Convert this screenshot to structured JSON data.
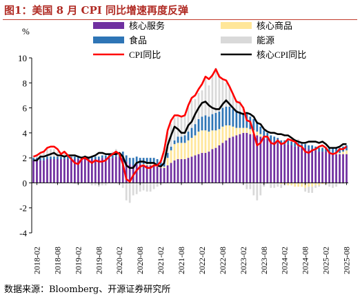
{
  "figure": {
    "title": "图1：美国 8 月 CPI 同比增速再度反弹",
    "source": "数据来源：Bloomberg、开源证券研究所"
  },
  "chart_data": {
    "type": "bar+line",
    "ylabel": "%",
    "ylim": [
      -4,
      10
    ],
    "yticks": [
      -4,
      -2,
      0,
      2,
      4,
      6,
      8,
      10
    ],
    "x_tick_labels": [
      "2018-02",
      "2018-08",
      "2019-02",
      "2019-08",
      "2020-02",
      "2020-08",
      "2021-02",
      "2021-08",
      "2022-02",
      "2022-08",
      "2023-02",
      "2023-08",
      "2024-02",
      "2024-08",
      "2025-02",
      "2025-08"
    ],
    "grid": false,
    "legend_position": "top",
    "months": [
      "2018-01",
      "2018-02",
      "2018-03",
      "2018-04",
      "2018-05",
      "2018-06",
      "2018-07",
      "2018-08",
      "2018-09",
      "2018-10",
      "2018-11",
      "2018-12",
      "2019-01",
      "2019-02",
      "2019-03",
      "2019-04",
      "2019-05",
      "2019-06",
      "2019-07",
      "2019-08",
      "2019-09",
      "2019-10",
      "2019-11",
      "2019-12",
      "2020-01",
      "2020-02",
      "2020-03",
      "2020-04",
      "2020-05",
      "2020-06",
      "2020-07",
      "2020-08",
      "2020-09",
      "2020-10",
      "2020-11",
      "2020-12",
      "2021-01",
      "2021-02",
      "2021-03",
      "2021-04",
      "2021-05",
      "2021-06",
      "2021-07",
      "2021-08",
      "2021-09",
      "2021-10",
      "2021-11",
      "2021-12",
      "2022-01",
      "2022-02",
      "2022-03",
      "2022-04",
      "2022-05",
      "2022-06",
      "2022-07",
      "2022-08",
      "2022-09",
      "2022-10",
      "2022-11",
      "2022-12",
      "2023-01",
      "2023-02",
      "2023-03",
      "2023-04",
      "2023-05",
      "2023-06",
      "2023-07",
      "2023-08",
      "2023-09",
      "2023-10",
      "2023-11",
      "2023-12",
      "2024-01",
      "2024-02",
      "2024-03",
      "2024-04",
      "2024-05",
      "2024-06",
      "2024-07",
      "2024-08",
      "2024-09",
      "2024-10",
      "2024-11",
      "2024-12",
      "2025-01",
      "2025-02",
      "2025-03",
      "2025-04",
      "2025-05",
      "2025-06",
      "2025-07",
      "2025-08"
    ],
    "bar_series": [
      {
        "name": "核心服务",
        "color": "#7030a0",
        "values": [
          1.8,
          1.8,
          1.8,
          1.8,
          1.9,
          1.9,
          1.9,
          1.9,
          1.9,
          1.9,
          1.9,
          1.9,
          1.9,
          1.9,
          1.9,
          1.9,
          1.9,
          1.9,
          1.9,
          1.9,
          2.0,
          2.0,
          2.0,
          2.0,
          2.1,
          2.1,
          2.0,
          1.7,
          1.5,
          1.4,
          1.5,
          1.5,
          1.4,
          1.4,
          1.4,
          1.4,
          1.3,
          1.2,
          1.2,
          1.4,
          1.6,
          1.8,
          1.9,
          1.9,
          1.9,
          2.0,
          2.1,
          2.2,
          2.3,
          2.4,
          2.4,
          2.5,
          2.7,
          2.8,
          3.0,
          3.2,
          3.4,
          3.6,
          3.7,
          3.8,
          3.9,
          4.0,
          4.0,
          3.9,
          3.9,
          3.8,
          3.7,
          3.6,
          3.5,
          3.4,
          3.3,
          3.2,
          3.1,
          3.1,
          3.1,
          3.0,
          2.9,
          2.9,
          2.8,
          2.8,
          2.7,
          2.7,
          2.6,
          2.5,
          2.5,
          2.5,
          2.4,
          2.4,
          2.3,
          2.3,
          2.3,
          2.3
        ]
      },
      {
        "name": "核心商品",
        "color": "#ffe699",
        "values": [
          0.0,
          0.0,
          0.0,
          0.0,
          0.0,
          0.0,
          0.0,
          0.0,
          0.0,
          0.0,
          0.0,
          0.0,
          0.0,
          0.0,
          0.0,
          0.0,
          0.0,
          0.0,
          0.0,
          0.0,
          0.0,
          0.0,
          0.0,
          0.0,
          0.0,
          0.0,
          0.0,
          0.0,
          0.0,
          0.0,
          0.0,
          0.0,
          0.1,
          0.1,
          0.1,
          0.1,
          0.1,
          0.1,
          0.1,
          0.6,
          1.0,
          1.3,
          1.3,
          1.3,
          1.3,
          1.4,
          1.5,
          1.6,
          1.8,
          1.8,
          1.8,
          1.6,
          1.5,
          1.4,
          1.3,
          1.3,
          1.2,
          1.0,
          0.8,
          0.6,
          0.5,
          0.4,
          0.4,
          0.4,
          0.3,
          0.3,
          0.2,
          0.1,
          0.0,
          0.0,
          0.0,
          0.0,
          -0.1,
          -0.1,
          -0.2,
          -0.2,
          -0.3,
          -0.3,
          -0.3,
          -0.4,
          -0.3,
          -0.3,
          -0.2,
          -0.2,
          -0.1,
          -0.1,
          0.0,
          0.0,
          0.1,
          0.1,
          0.2,
          0.3
        ]
      },
      {
        "name": "食品",
        "color": "#2e75b6",
        "values": [
          0.2,
          0.2,
          0.2,
          0.2,
          0.2,
          0.2,
          0.2,
          0.2,
          0.2,
          0.2,
          0.2,
          0.2,
          0.2,
          0.2,
          0.2,
          0.2,
          0.2,
          0.2,
          0.2,
          0.2,
          0.2,
          0.2,
          0.3,
          0.3,
          0.3,
          0.3,
          0.5,
          0.5,
          0.5,
          0.6,
          0.6,
          0.5,
          0.5,
          0.5,
          0.5,
          0.5,
          0.5,
          0.5,
          0.5,
          0.4,
          0.3,
          0.3,
          0.5,
          0.5,
          0.6,
          0.7,
          0.8,
          0.9,
          1.0,
          1.1,
          1.2,
          1.2,
          1.3,
          1.4,
          1.4,
          1.5,
          1.5,
          1.5,
          1.4,
          1.4,
          1.3,
          1.2,
          1.1,
          1.0,
          0.9,
          0.8,
          0.6,
          0.5,
          0.5,
          0.4,
          0.4,
          0.4,
          0.3,
          0.3,
          0.3,
          0.3,
          0.3,
          0.3,
          0.3,
          0.3,
          0.3,
          0.3,
          0.3,
          0.3,
          0.3,
          0.3,
          0.4,
          0.4,
          0.4,
          0.4,
          0.4,
          0.4
        ]
      },
      {
        "name": "能源",
        "color": "#d9d9d9",
        "values": [
          0.2,
          0.3,
          0.3,
          0.5,
          0.6,
          0.6,
          0.6,
          0.4,
          0.3,
          0.4,
          0.2,
          0.0,
          -0.1,
          -0.1,
          0.0,
          0.1,
          0.0,
          -0.2,
          -0.2,
          -0.3,
          -0.2,
          -0.2,
          0.0,
          0.2,
          0.3,
          0.0,
          -0.4,
          -1.4,
          -1.6,
          -1.0,
          -0.9,
          -0.7,
          -0.6,
          -0.7,
          -0.7,
          -0.5,
          -0.3,
          0.0,
          1.0,
          1.6,
          1.8,
          1.8,
          1.6,
          1.6,
          1.7,
          2.0,
          2.2,
          2.0,
          2.1,
          2.1,
          2.9,
          2.5,
          3.2,
          3.6,
          3.0,
          2.3,
          1.9,
          1.6,
          1.3,
          0.7,
          0.9,
          0.5,
          -0.5,
          -0.5,
          -1.0,
          -1.4,
          -1.0,
          -0.3,
          -0.1,
          -0.4,
          -0.4,
          -0.3,
          -0.3,
          -0.1,
          0.2,
          0.2,
          0.3,
          0.3,
          0.2,
          -0.3,
          -0.5,
          -0.5,
          -0.2,
          -0.1,
          0.1,
          0.0,
          -0.3,
          -0.4,
          -0.3,
          -0.1,
          -0.1,
          0.0
        ]
      }
    ],
    "line_series": [
      {
        "name": "CPI同比",
        "color": "#ff0000",
        "values": [
          2.1,
          2.2,
          2.4,
          2.5,
          2.8,
          2.9,
          2.9,
          2.7,
          2.3,
          2.5,
          2.2,
          1.9,
          1.6,
          1.5,
          1.9,
          2.0,
          1.8,
          1.6,
          1.8,
          1.7,
          1.7,
          1.8,
          2.1,
          2.3,
          2.5,
          2.3,
          1.5,
          0.3,
          0.1,
          0.6,
          1.0,
          1.3,
          1.4,
          1.2,
          1.2,
          1.4,
          1.4,
          1.7,
          2.6,
          4.2,
          5.0,
          5.4,
          5.4,
          5.3,
          5.4,
          6.2,
          6.8,
          7.0,
          7.5,
          7.9,
          8.5,
          8.3,
          8.6,
          9.1,
          8.5,
          8.3,
          8.2,
          7.7,
          7.1,
          6.5,
          6.4,
          6.0,
          5.0,
          4.9,
          4.0,
          3.0,
          3.2,
          3.7,
          3.7,
          3.2,
          3.1,
          3.4,
          3.1,
          3.2,
          3.5,
          3.4,
          3.3,
          3.0,
          2.9,
          2.5,
          2.4,
          2.6,
          2.7,
          2.9,
          3.0,
          2.8,
          2.4,
          2.3,
          2.4,
          2.7,
          2.7,
          2.9
        ]
      },
      {
        "name": "核心CPI同比",
        "color": "#000000",
        "values": [
          1.8,
          1.8,
          2.1,
          2.1,
          2.2,
          2.3,
          2.4,
          2.2,
          2.2,
          2.1,
          2.2,
          2.2,
          2.2,
          2.1,
          2.0,
          2.1,
          2.0,
          2.1,
          2.2,
          2.4,
          2.4,
          2.3,
          2.3,
          2.3,
          2.3,
          2.4,
          2.1,
          1.4,
          1.2,
          1.2,
          1.6,
          1.7,
          1.7,
          1.6,
          1.6,
          1.6,
          1.4,
          1.3,
          1.6,
          3.0,
          3.8,
          4.5,
          4.3,
          4.0,
          4.0,
          4.6,
          4.9,
          5.5,
          6.0,
          6.4,
          6.5,
          6.2,
          6.0,
          5.9,
          5.9,
          6.3,
          6.6,
          6.3,
          6.0,
          5.7,
          5.6,
          5.5,
          5.6,
          5.5,
          5.3,
          4.8,
          4.7,
          4.3,
          4.1,
          4.0,
          4.0,
          3.9,
          3.9,
          3.8,
          3.8,
          3.6,
          3.4,
          3.3,
          3.2,
          3.2,
          3.3,
          3.3,
          3.3,
          3.2,
          3.3,
          3.1,
          2.8,
          2.8,
          2.8,
          2.9,
          3.1,
          3.1
        ]
      }
    ],
    "legend": [
      {
        "label": "核心服务",
        "kind": "swatch",
        "color": "#7030a0"
      },
      {
        "label": "核心商品",
        "kind": "swatch",
        "color": "#ffe699"
      },
      {
        "label": "食品",
        "kind": "swatch",
        "color": "#2e75b6"
      },
      {
        "label": "能源",
        "kind": "swatch",
        "color": "#d9d9d9"
      },
      {
        "label": "CPI同比",
        "kind": "line",
        "color": "#ff0000"
      },
      {
        "label": "核心CPI同比",
        "kind": "line",
        "color": "#000000"
      }
    ]
  }
}
